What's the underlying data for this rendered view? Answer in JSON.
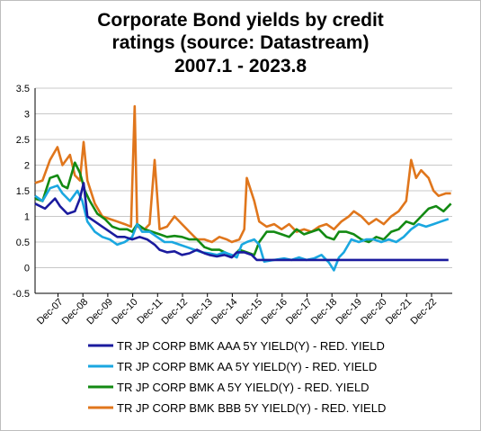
{
  "chart_data": {
    "type": "line",
    "title_lines": [
      "Corporate Bond yields by credit",
      "ratings (source: Datastream)",
      "2007.1 - 2023.8"
    ],
    "xlabel": "",
    "ylabel": "",
    "ylim": [
      -0.5,
      3.5
    ],
    "yticks": [
      "-0.5",
      "0",
      "0.5",
      "1",
      "1.5",
      "2",
      "2.5",
      "3",
      "3.5"
    ],
    "x_tick_labels": [
      "Dec-07",
      "Dec-08",
      "Dec-09",
      "Dec-10",
      "Dec-11",
      "Dec-12",
      "Dec-13",
      "Dec-14",
      "Dec-15",
      "Dec-16",
      "Dec-17",
      "Dec-18",
      "Dec-19",
      "Dec-20",
      "Dec-21",
      "Dec-22"
    ],
    "x_start": "2007.1",
    "x_end": "2023.8",
    "grid": "horizontal",
    "legend_position": "bottom",
    "series": [
      {
        "name": "TR JP CORP BMK AAA 5Y YIELD(Y) - RED. YIELD",
        "color": "#1b1b9e",
        "points": [
          [
            2007.0,
            1.25
          ],
          [
            2007.4,
            1.15
          ],
          [
            2007.8,
            1.35
          ],
          [
            2008.0,
            1.2
          ],
          [
            2008.3,
            1.05
          ],
          [
            2008.6,
            1.1
          ],
          [
            2008.8,
            1.35
          ],
          [
            2008.95,
            1.65
          ],
          [
            2009.1,
            1.0
          ],
          [
            2009.4,
            0.9
          ],
          [
            2009.7,
            0.8
          ],
          [
            2010.0,
            0.7
          ],
          [
            2010.3,
            0.6
          ],
          [
            2010.6,
            0.6
          ],
          [
            2010.9,
            0.55
          ],
          [
            2011.2,
            0.6
          ],
          [
            2011.5,
            0.55
          ],
          [
            2011.8,
            0.45
          ],
          [
            2012.0,
            0.35
          ],
          [
            2012.3,
            0.3
          ],
          [
            2012.6,
            0.32
          ],
          [
            2012.9,
            0.25
          ],
          [
            2013.2,
            0.28
          ],
          [
            2013.5,
            0.35
          ],
          [
            2013.8,
            0.28
          ],
          [
            2014.0,
            0.25
          ],
          [
            2014.3,
            0.22
          ],
          [
            2014.6,
            0.25
          ],
          [
            2014.9,
            0.2
          ],
          [
            2015.1,
            0.3
          ],
          [
            2015.4,
            0.3
          ],
          [
            2015.7,
            0.25
          ],
          [
            2015.9,
            0.15
          ],
          [
            2016.2,
            0.15
          ],
          [
            2016.6,
            0.15
          ],
          [
            2017.0,
            0.15
          ],
          [
            2017.5,
            0.15
          ],
          [
            2018.0,
            0.15
          ],
          [
            2018.5,
            0.15
          ],
          [
            2019.0,
            0.15
          ],
          [
            2019.5,
            0.15
          ],
          [
            2020.0,
            0.15
          ],
          [
            2020.5,
            0.15
          ],
          [
            2021.0,
            0.15
          ],
          [
            2021.5,
            0.15
          ],
          [
            2022.0,
            0.15
          ],
          [
            2022.5,
            0.15
          ],
          [
            2023.0,
            0.15
          ],
          [
            2023.6,
            0.15
          ]
        ]
      },
      {
        "name": "TR JP CORP BMK AA 5Y YIELD(Y) - RED. YIELD",
        "color": "#1aa7e0",
        "points": [
          [
            2007.0,
            1.4
          ],
          [
            2007.3,
            1.3
          ],
          [
            2007.6,
            1.55
          ],
          [
            2007.9,
            1.6
          ],
          [
            2008.1,
            1.45
          ],
          [
            2008.4,
            1.3
          ],
          [
            2008.7,
            1.5
          ],
          [
            2008.9,
            1.3
          ],
          [
            2009.1,
            0.9
          ],
          [
            2009.4,
            0.7
          ],
          [
            2009.7,
            0.6
          ],
          [
            2010.0,
            0.55
          ],
          [
            2010.3,
            0.45
          ],
          [
            2010.6,
            0.5
          ],
          [
            2010.9,
            0.6
          ],
          [
            2011.1,
            0.85
          ],
          [
            2011.3,
            0.7
          ],
          [
            2011.6,
            0.7
          ],
          [
            2011.9,
            0.6
          ],
          [
            2012.2,
            0.5
          ],
          [
            2012.5,
            0.5
          ],
          [
            2012.8,
            0.45
          ],
          [
            2013.1,
            0.4
          ],
          [
            2013.4,
            0.35
          ],
          [
            2013.7,
            0.3
          ],
          [
            2014.0,
            0.28
          ],
          [
            2014.3,
            0.25
          ],
          [
            2014.6,
            0.3
          ],
          [
            2014.9,
            0.25
          ],
          [
            2015.1,
            0.2
          ],
          [
            2015.3,
            0.45
          ],
          [
            2015.5,
            0.5
          ],
          [
            2015.8,
            0.55
          ],
          [
            2016.0,
            0.45
          ],
          [
            2016.2,
            0.12
          ],
          [
            2016.6,
            0.15
          ],
          [
            2017.0,
            0.18
          ],
          [
            2017.3,
            0.15
          ],
          [
            2017.6,
            0.2
          ],
          [
            2017.9,
            0.15
          ],
          [
            2018.2,
            0.18
          ],
          [
            2018.5,
            0.25
          ],
          [
            2018.8,
            0.1
          ],
          [
            2019.0,
            -0.05
          ],
          [
            2019.2,
            0.2
          ],
          [
            2019.4,
            0.3
          ],
          [
            2019.7,
            0.55
          ],
          [
            2020.0,
            0.5
          ],
          [
            2020.3,
            0.55
          ],
          [
            2020.6,
            0.55
          ],
          [
            2020.9,
            0.5
          ],
          [
            2021.2,
            0.55
          ],
          [
            2021.5,
            0.5
          ],
          [
            2021.8,
            0.6
          ],
          [
            2022.1,
            0.75
          ],
          [
            2022.4,
            0.85
          ],
          [
            2022.7,
            0.8
          ],
          [
            2023.0,
            0.85
          ],
          [
            2023.3,
            0.9
          ],
          [
            2023.6,
            0.95
          ]
        ]
      },
      {
        "name": "TR JP CORP BMK A 5Y YIELD(Y) - RED. YIELD",
        "color": "#138a13",
        "points": [
          [
            2007.0,
            1.35
          ],
          [
            2007.3,
            1.3
          ],
          [
            2007.6,
            1.75
          ],
          [
            2007.9,
            1.8
          ],
          [
            2008.1,
            1.6
          ],
          [
            2008.3,
            1.55
          ],
          [
            2008.6,
            2.05
          ],
          [
            2008.8,
            1.85
          ],
          [
            2009.0,
            1.5
          ],
          [
            2009.2,
            1.3
          ],
          [
            2009.5,
            1.05
          ],
          [
            2009.8,
            0.95
          ],
          [
            2010.1,
            0.8
          ],
          [
            2010.4,
            0.75
          ],
          [
            2010.7,
            0.75
          ],
          [
            2010.9,
            0.7
          ],
          [
            2011.1,
            0.85
          ],
          [
            2011.4,
            0.75
          ],
          [
            2011.7,
            0.7
          ],
          [
            2012.0,
            0.65
          ],
          [
            2012.3,
            0.6
          ],
          [
            2012.6,
            0.62
          ],
          [
            2012.9,
            0.6
          ],
          [
            2013.2,
            0.55
          ],
          [
            2013.5,
            0.55
          ],
          [
            2013.8,
            0.4
          ],
          [
            2014.1,
            0.35
          ],
          [
            2014.4,
            0.35
          ],
          [
            2014.7,
            0.28
          ],
          [
            2014.95,
            0.22
          ],
          [
            2015.2,
            0.35
          ],
          [
            2015.5,
            0.3
          ],
          [
            2015.8,
            0.25
          ],
          [
            2016.0,
            0.5
          ],
          [
            2016.3,
            0.7
          ],
          [
            2016.6,
            0.7
          ],
          [
            2016.9,
            0.65
          ],
          [
            2017.2,
            0.6
          ],
          [
            2017.5,
            0.75
          ],
          [
            2017.8,
            0.65
          ],
          [
            2018.1,
            0.7
          ],
          [
            2018.4,
            0.75
          ],
          [
            2018.7,
            0.6
          ],
          [
            2019.0,
            0.55
          ],
          [
            2019.2,
            0.7
          ],
          [
            2019.5,
            0.7
          ],
          [
            2019.8,
            0.65
          ],
          [
            2020.1,
            0.55
          ],
          [
            2020.4,
            0.5
          ],
          [
            2020.7,
            0.6
          ],
          [
            2021.0,
            0.55
          ],
          [
            2021.3,
            0.7
          ],
          [
            2021.6,
            0.75
          ],
          [
            2021.9,
            0.9
          ],
          [
            2022.2,
            0.85
          ],
          [
            2022.5,
            1.0
          ],
          [
            2022.8,
            1.15
          ],
          [
            2023.1,
            1.2
          ],
          [
            2023.4,
            1.1
          ],
          [
            2023.7,
            1.25
          ]
        ]
      },
      {
        "name": "TR JP CORP BMK BBB 5Y YIELD(Y) - RED. YIELD",
        "color": "#e0761c",
        "points": [
          [
            2007.0,
            1.65
          ],
          [
            2007.3,
            1.7
          ],
          [
            2007.6,
            2.1
          ],
          [
            2007.9,
            2.35
          ],
          [
            2008.1,
            2.0
          ],
          [
            2008.4,
            2.2
          ],
          [
            2008.6,
            1.8
          ],
          [
            2008.8,
            1.7
          ],
          [
            2008.95,
            2.45
          ],
          [
            2009.1,
            1.7
          ],
          [
            2009.4,
            1.25
          ],
          [
            2009.7,
            1.0
          ],
          [
            2010.0,
            0.95
          ],
          [
            2010.3,
            0.9
          ],
          [
            2010.6,
            0.85
          ],
          [
            2010.85,
            0.8
          ],
          [
            2011.0,
            3.15
          ],
          [
            2011.1,
            0.8
          ],
          [
            2011.4,
            0.75
          ],
          [
            2011.6,
            0.85
          ],
          [
            2011.8,
            2.1
          ],
          [
            2012.0,
            0.75
          ],
          [
            2012.3,
            0.8
          ],
          [
            2012.6,
            1.0
          ],
          [
            2012.9,
            0.85
          ],
          [
            2013.2,
            0.7
          ],
          [
            2013.5,
            0.55
          ],
          [
            2013.8,
            0.55
          ],
          [
            2014.1,
            0.5
          ],
          [
            2014.4,
            0.6
          ],
          [
            2014.7,
            0.55
          ],
          [
            2014.9,
            0.5
          ],
          [
            2015.2,
            0.55
          ],
          [
            2015.4,
            0.75
          ],
          [
            2015.5,
            1.75
          ],
          [
            2015.8,
            1.3
          ],
          [
            2016.0,
            0.9
          ],
          [
            2016.3,
            0.8
          ],
          [
            2016.6,
            0.85
          ],
          [
            2016.9,
            0.75
          ],
          [
            2017.2,
            0.85
          ],
          [
            2017.5,
            0.7
          ],
          [
            2017.8,
            0.75
          ],
          [
            2018.1,
            0.7
          ],
          [
            2018.4,
            0.8
          ],
          [
            2018.7,
            0.85
          ],
          [
            2019.0,
            0.75
          ],
          [
            2019.3,
            0.9
          ],
          [
            2019.6,
            1.0
          ],
          [
            2019.8,
            1.1
          ],
          [
            2020.1,
            1.0
          ],
          [
            2020.4,
            0.85
          ],
          [
            2020.7,
            0.95
          ],
          [
            2021.0,
            0.85
          ],
          [
            2021.3,
            1.0
          ],
          [
            2021.6,
            1.1
          ],
          [
            2021.9,
            1.3
          ],
          [
            2022.1,
            2.1
          ],
          [
            2022.3,
            1.75
          ],
          [
            2022.5,
            1.9
          ],
          [
            2022.8,
            1.75
          ],
          [
            2023.0,
            1.5
          ],
          [
            2023.2,
            1.4
          ],
          [
            2023.5,
            1.45
          ],
          [
            2023.7,
            1.45
          ]
        ]
      }
    ]
  },
  "colors": {
    "background": "#ffffff",
    "grid": "#c8c8c8",
    "axis": "#000000"
  }
}
